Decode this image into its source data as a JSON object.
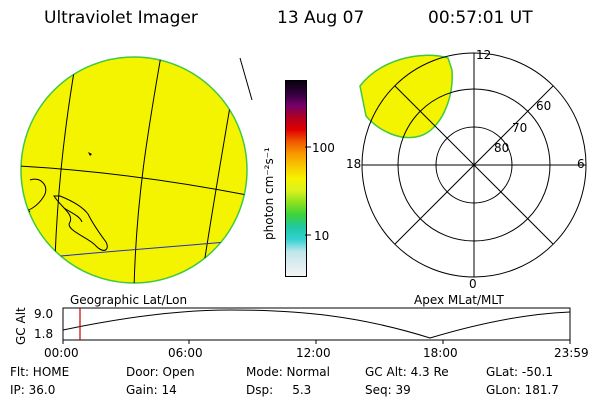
{
  "header": {
    "instrument": "Ultraviolet Imager",
    "date": "13 Aug 07",
    "time": "00:57:01 UT"
  },
  "colorbar": {
    "unit_label": "photon cm⁻²s⁻¹",
    "ticks": [
      "100",
      "10"
    ],
    "colors": [
      "#f4f4f4",
      "#dcecf0",
      "#bfe6ea",
      "#33d1d1",
      "#1fc8a4",
      "#3cd13c",
      "#8ae020",
      "#d9f21e",
      "#f5f300",
      "#f8c800",
      "#f89a00",
      "#f05a00",
      "#e00000",
      "#b00020",
      "#74006a",
      "#30003a",
      "#080010"
    ]
  },
  "left_panel": {
    "label": "Geographic Lat/Lon",
    "fill_color": "#f4f400"
  },
  "right_panel": {
    "label": "Apex MLat/MLT",
    "mlt_labels": {
      "top": "12",
      "left": "18",
      "right": "6",
      "bottom": "0"
    },
    "lat_labels": [
      "60",
      "70",
      "80"
    ]
  },
  "timeline": {
    "axis_label": "GC Alt",
    "y_ticks": [
      "9.0",
      "1.8"
    ],
    "x_ticks": [
      "00:00",
      "06:00",
      "12:00",
      "18:00",
      "23:59"
    ],
    "current_marker_color": "#d00000"
  },
  "footer": {
    "rows": [
      [
        "Flt: HOME",
        "Door: Open",
        "Mode: Normal",
        "GC Alt: 4.3 Re",
        "GLat: -50.1"
      ],
      [
        "IP: 36.0",
        "Gain: 14",
        "Dsp:     5.3",
        "Seq: 39",
        "GLon: 181.7"
      ]
    ]
  }
}
